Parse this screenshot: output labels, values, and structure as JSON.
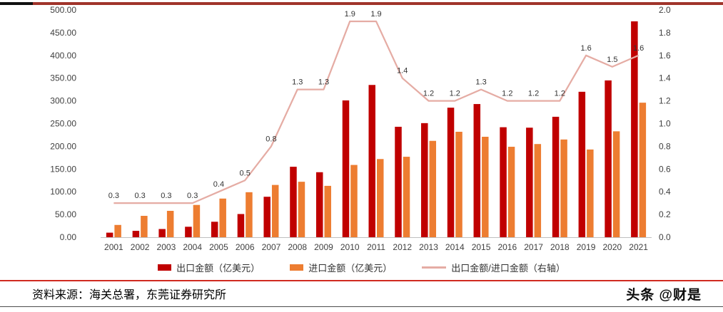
{
  "page": {
    "colors": {
      "top_rule_black": "#111111",
      "top_rule_red": "#A0342B",
      "footer_rule_red": "#D02A20",
      "bottom_rule_gray": "#4D4D4D",
      "axis_text": "#404040",
      "data_label_text": "#333333",
      "axis_line": "#BFBFBF"
    }
  },
  "chart_data": {
    "type": "bar",
    "categories": [
      "2001",
      "2002",
      "2003",
      "2004",
      "2005",
      "2006",
      "2007",
      "2008",
      "2009",
      "2010",
      "2011",
      "2012",
      "2013",
      "2014",
      "2015",
      "2016",
      "2017",
      "2018",
      "2019",
      "2020",
      "2021"
    ],
    "series": [
      {
        "name": "出口金额（亿美元）",
        "type": "bar",
        "axis": "left",
        "color": "#C00000",
        "values": [
          10,
          14,
          18,
          23,
          34,
          51,
          89,
          155,
          143,
          301,
          335,
          243,
          251,
          285,
          293,
          242,
          241,
          265,
          320,
          345,
          475
        ]
      },
      {
        "name": "进口金额（亿美元）",
        "type": "bar",
        "axis": "left",
        "color": "#ED7D31",
        "values": [
          27,
          47,
          58,
          71,
          85,
          99,
          115,
          122,
          113,
          159,
          172,
          177,
          212,
          232,
          221,
          199,
          205,
          215,
          193,
          233,
          296
        ]
      },
      {
        "name": "出口金额/进口金额（右轴）",
        "type": "line",
        "axis": "right",
        "color": "#E5ACA4",
        "data_labels": true,
        "values": [
          0.3,
          0.3,
          0.3,
          0.3,
          0.4,
          0.5,
          0.8,
          1.3,
          1.3,
          1.9,
          1.9,
          1.4,
          1.2,
          1.2,
          1.3,
          1.2,
          1.2,
          1.2,
          1.6,
          1.5,
          1.6
        ]
      }
    ],
    "left_axis": {
      "min": 0,
      "max": 500,
      "step": 50,
      "ticks": [
        "0.00",
        "50.00",
        "100.00",
        "150.00",
        "200.00",
        "250.00",
        "300.00",
        "350.00",
        "400.00",
        "450.00",
        "500.00"
      ]
    },
    "right_axis": {
      "min": 0,
      "max": 2,
      "step": 0.2,
      "ticks": [
        "0.0",
        "0.2",
        "0.4",
        "0.6",
        "0.8",
        "1.0",
        "1.2",
        "1.4",
        "1.6",
        "1.8",
        "2.0"
      ]
    },
    "legend_position": "bottom",
    "grid": false
  },
  "footer": {
    "source": "资料来源：海关总署，东莞证券研究所",
    "watermark": "头条 @财是"
  }
}
